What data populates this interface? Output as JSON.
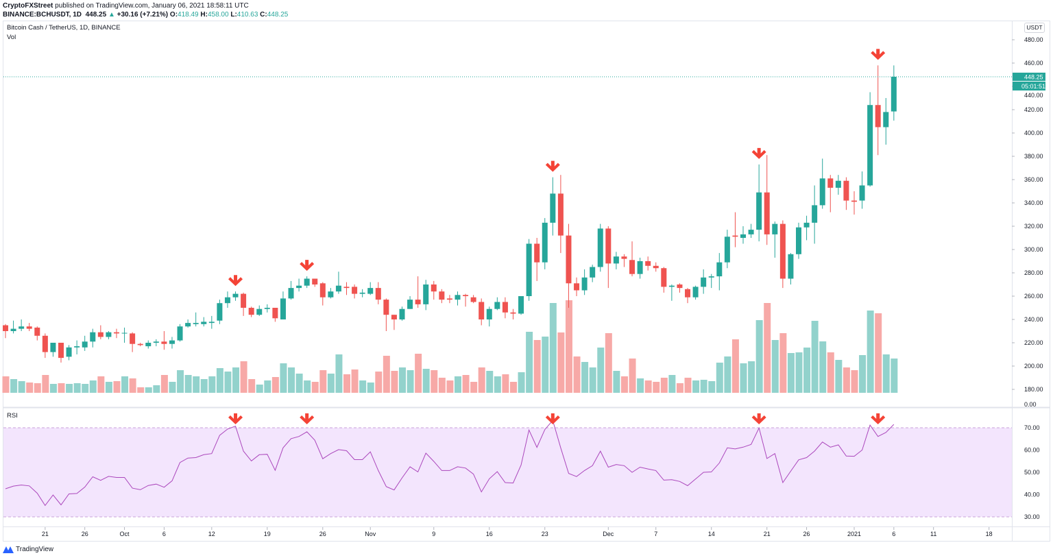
{
  "header": {
    "publisher": "CryptoFXStreet",
    "published_text": "published on TradingView.com, January 06, 2021 18:58:11 UTC",
    "symbol": "BINANCE:BCHUSDT, 1D",
    "last": "448.25",
    "change": "+30.16 (+7.21%)",
    "o_label": "O:",
    "o": "418.49",
    "h_label": "H:",
    "h": "458.00",
    "l_label": "L:",
    "l": "410.63",
    "c_label": "C:",
    "c": "448.25"
  },
  "legend": {
    "title": "Bitcoin Cash / TetherUS, 1D, BINANCE",
    "vol": "Vol",
    "rsi": "RSI"
  },
  "price_axis": {
    "unit": "USDT",
    "last_price": "448.25",
    "countdown": "05:01:51",
    "volume_zero": "0.00"
  },
  "footer": {
    "brand": "TradingView"
  },
  "colors": {
    "up": "#26a69a",
    "down": "#ef5350",
    "up_volume": "#92d2cc",
    "down_volume": "#f7a9a7",
    "rsi_line": "#ab47bc",
    "rsi_band": "#f3e5fd",
    "marker": "#f44336"
  },
  "chart_data": {
    "type": "candlestick",
    "title": "Bitcoin Cash / TetherUS, 1D, BINANCE",
    "ylim": [
      180,
      480
    ],
    "yticks": [
      "480.00",
      "460.00",
      "440.00",
      "420.00",
      "400.00",
      "380.00",
      "360.00",
      "340.00",
      "320.00",
      "300.00",
      "280.00",
      "260.00",
      "240.00",
      "220.00",
      "200.00",
      "180.00"
    ],
    "rsi_ticks": [
      "70.00",
      "60.00",
      "50.00",
      "40.00",
      "30.00"
    ],
    "rsi_band": [
      30,
      70
    ],
    "xticks": [
      {
        "label": "21",
        "date": "2020-09-21"
      },
      {
        "label": "26",
        "date": "2020-09-26"
      },
      {
        "label": "Oct",
        "date": "2020-10-01"
      },
      {
        "label": "6",
        "date": "2020-10-06"
      },
      {
        "label": "12",
        "date": "2020-10-12"
      },
      {
        "label": "19",
        "date": "2020-10-19"
      },
      {
        "label": "26",
        "date": "2020-10-26"
      },
      {
        "label": "Nov",
        "date": "2020-11-01"
      },
      {
        "label": "9",
        "date": "2020-11-09"
      },
      {
        "label": "16",
        "date": "2020-11-16"
      },
      {
        "label": "23",
        "date": "2020-11-23"
      },
      {
        "label": "Dec",
        "date": "2020-12-01"
      },
      {
        "label": "7",
        "date": "2020-12-07"
      },
      {
        "label": "14",
        "date": "2020-12-14"
      },
      {
        "label": "21",
        "date": "2020-12-21"
      },
      {
        "label": "26",
        "date": "2020-12-26"
      },
      {
        "label": "2021",
        "date": "2021-01-01"
      },
      {
        "label": "6",
        "date": "2021-01-06"
      },
      {
        "label": "11",
        "date": "2021-01-11"
      },
      {
        "label": "18",
        "date": "2021-01-18"
      }
    ],
    "markers": [
      "2020-10-15",
      "2020-10-24",
      "2020-11-24",
      "2020-12-20",
      "2021-01-04"
    ],
    "columns": [
      "date",
      "open",
      "high",
      "low",
      "close",
      "volume",
      "rsi"
    ],
    "rows": [
      [
        "2020-09-16",
        235,
        236,
        224,
        230,
        24,
        42.6
      ],
      [
        "2020-09-17",
        230,
        239,
        228,
        232,
        20,
        43.8
      ],
      [
        "2020-09-18",
        232,
        240,
        230,
        234,
        17,
        44.3
      ],
      [
        "2020-09-19",
        234,
        237,
        230,
        232,
        15,
        43.9
      ],
      [
        "2020-09-20",
        233,
        234,
        222,
        226,
        14,
        40.6
      ],
      [
        "2020-09-21",
        226,
        228,
        207,
        212,
        26,
        35.1
      ],
      [
        "2020-09-22",
        212,
        220,
        208,
        220,
        13,
        39.8
      ],
      [
        "2020-09-23",
        220,
        220,
        203,
        207,
        14,
        35.4
      ],
      [
        "2020-09-24",
        208,
        218,
        205,
        216,
        13,
        40.3
      ],
      [
        "2020-09-25",
        216,
        222,
        210,
        217,
        14,
        40.5
      ],
      [
        "2020-09-26",
        216,
        226,
        213,
        221,
        13,
        43.4
      ],
      [
        "2020-09-27",
        221,
        232,
        216,
        229,
        18,
        48.0
      ],
      [
        "2020-09-28",
        229,
        235,
        223,
        225,
        24,
        46.4
      ],
      [
        "2020-09-29",
        225,
        230,
        223,
        229,
        16,
        48.2
      ],
      [
        "2020-09-30",
        229,
        232,
        224,
        228,
        17,
        47.7
      ],
      [
        "2020-10-01",
        228,
        233,
        220,
        228.5,
        24,
        47.7
      ],
      [
        "2020-10-02",
        228,
        229,
        212,
        219,
        21,
        42.9
      ],
      [
        "2020-10-03",
        219,
        220,
        217,
        218,
        8,
        42.2
      ],
      [
        "2020-10-04",
        217,
        222,
        215,
        220,
        8,
        44.1
      ],
      [
        "2020-10-05",
        220,
        223,
        217,
        221,
        11,
        44.7
      ],
      [
        "2020-10-06",
        221,
        230,
        214,
        219,
        26,
        43.3
      ],
      [
        "2020-10-07",
        219,
        225,
        215,
        222,
        16,
        46.2
      ],
      [
        "2020-10-08",
        222,
        236,
        221,
        234,
        33,
        54.4
      ],
      [
        "2020-10-09",
        234,
        240,
        233,
        237,
        26,
        56.4
      ],
      [
        "2020-10-10",
        236,
        246,
        234,
        237,
        24,
        56.6
      ],
      [
        "2020-10-11",
        236,
        242,
        234,
        238,
        20,
        57.9
      ],
      [
        "2020-10-12",
        237,
        243,
        232,
        238,
        24,
        58.4
      ],
      [
        "2020-10-13",
        239,
        257,
        236,
        254,
        36,
        66.6
      ],
      [
        "2020-10-14",
        254,
        264,
        250,
        259,
        31,
        69.4
      ],
      [
        "2020-10-15",
        259,
        264,
        256,
        262,
        37,
        70.7
      ],
      [
        "2020-10-16",
        262,
        263,
        243,
        250,
        46,
        59.5
      ],
      [
        "2020-10-17",
        250,
        251,
        242,
        244,
        20,
        55.1
      ],
      [
        "2020-10-18",
        244,
        252,
        243,
        249,
        12,
        57.9
      ],
      [
        "2020-10-19",
        249,
        253,
        246,
        250,
        18,
        58.1
      ],
      [
        "2020-10-20",
        250,
        250,
        238,
        241,
        23,
        50.9
      ],
      [
        "2020-10-21",
        240,
        264,
        240,
        258,
        43,
        61.0
      ],
      [
        "2020-10-22",
        258,
        273,
        257,
        267,
        37,
        65.1
      ],
      [
        "2020-10-23",
        267,
        275,
        264,
        269,
        28,
        66.1
      ],
      [
        "2020-10-24",
        269,
        277,
        267,
        275,
        18,
        68.2
      ],
      [
        "2020-10-25",
        275,
        275,
        268,
        270,
        16,
        64.4
      ],
      [
        "2020-10-26",
        271,
        272,
        252,
        259,
        33,
        56.1
      ],
      [
        "2020-10-27",
        259,
        267,
        258,
        264,
        28,
        58.4
      ],
      [
        "2020-10-28",
        264,
        281,
        262,
        269,
        56,
        60.2
      ],
      [
        "2020-10-29",
        268,
        272,
        261,
        267,
        27,
        59.7
      ],
      [
        "2020-10-30",
        268,
        270,
        258,
        262,
        34,
        55.7
      ],
      [
        "2020-10-31",
        262,
        266,
        259,
        263,
        18,
        55.7
      ],
      [
        "2020-11-01",
        262,
        272,
        261,
        267,
        15,
        59.2
      ],
      [
        "2020-11-02",
        267,
        272,
        253,
        257,
        31,
        50.8
      ],
      [
        "2020-11-03",
        257,
        258,
        230,
        244,
        54,
        43.6
      ],
      [
        "2020-11-04",
        244,
        244,
        231,
        240,
        32,
        42.1
      ],
      [
        "2020-11-05",
        240,
        251,
        239,
        249,
        37,
        47.5
      ],
      [
        "2020-11-06",
        249,
        260,
        249,
        257,
        33,
        52.5
      ],
      [
        "2020-11-07",
        257,
        277,
        250,
        253,
        57,
        50.2
      ],
      [
        "2020-11-08",
        253,
        274,
        248,
        270,
        35,
        58.6
      ],
      [
        "2020-11-09",
        270,
        273,
        257,
        264,
        33,
        54.9
      ],
      [
        "2020-11-10",
        264,
        266,
        254,
        257,
        22,
        50.8
      ],
      [
        "2020-11-11",
        258,
        261,
        254,
        257,
        18,
        50.8
      ],
      [
        "2020-11-12",
        257,
        264,
        252,
        261,
        24,
        52.5
      ],
      [
        "2020-11-13",
        261,
        262,
        251,
        260,
        26,
        51.9
      ],
      [
        "2020-11-14",
        259,
        261,
        254,
        255,
        16,
        49.2
      ],
      [
        "2020-11-15",
        255,
        258,
        235,
        240,
        37,
        41.2
      ],
      [
        "2020-11-16",
        240,
        251,
        234,
        249,
        32,
        47.1
      ],
      [
        "2020-11-17",
        249,
        259,
        248,
        255,
        24,
        50.3
      ],
      [
        "2020-11-18",
        255,
        259,
        241,
        246,
        27,
        45.4
      ],
      [
        "2020-11-19",
        246,
        249,
        240,
        245,
        16,
        45.2
      ],
      [
        "2020-11-20",
        245,
        260,
        244,
        260,
        30,
        53.3
      ],
      [
        "2020-11-21",
        260,
        309,
        256,
        305,
        89,
        69.0
      ],
      [
        "2020-11-22",
        305,
        310,
        273,
        289,
        77,
        61.2
      ],
      [
        "2020-11-23",
        289,
        327,
        283,
        323,
        82,
        69.2
      ],
      [
        "2020-11-24",
        323,
        362,
        312,
        348,
        131,
        73.3
      ],
      [
        "2020-11-25",
        348,
        364,
        297,
        312,
        88,
        61.0
      ],
      [
        "2020-11-26",
        312,
        322,
        250,
        271,
        135,
        49.5
      ],
      [
        "2020-11-27",
        271,
        276,
        260,
        265,
        53,
        48.1
      ],
      [
        "2020-11-28",
        265,
        283,
        261,
        276,
        45,
        50.8
      ],
      [
        "2020-11-29",
        276,
        287,
        272,
        285,
        37,
        53.0
      ],
      [
        "2020-11-30",
        285,
        322,
        281,
        318,
        66,
        59.5
      ],
      [
        "2020-12-01",
        318,
        320,
        267,
        288,
        87,
        52.3
      ],
      [
        "2020-12-02",
        288,
        298,
        283,
        294,
        32,
        53.5
      ],
      [
        "2020-12-03",
        294,
        296,
        285,
        292,
        24,
        53.0
      ],
      [
        "2020-12-04",
        291,
        307,
        277,
        279,
        50,
        50.0
      ],
      [
        "2020-12-05",
        279,
        293,
        275,
        290,
        21,
        52.3
      ],
      [
        "2020-12-06",
        290,
        294,
        282,
        286,
        18,
        51.5
      ],
      [
        "2020-12-07",
        286,
        289,
        281,
        284,
        16,
        50.8
      ],
      [
        "2020-12-08",
        284,
        285,
        263,
        268,
        22,
        46.5
      ],
      [
        "2020-12-09",
        268,
        270,
        256,
        269,
        26,
        46.7
      ],
      [
        "2020-12-10",
        270,
        271,
        263,
        267,
        14,
        45.9
      ],
      [
        "2020-12-11",
        266,
        267,
        254,
        259,
        22,
        44.0
      ],
      [
        "2020-12-12",
        259,
        269,
        257,
        268,
        18,
        47.0
      ],
      [
        "2020-12-13",
        268,
        283,
        262,
        276,
        19,
        50.0
      ],
      [
        "2020-12-14",
        276,
        279,
        267,
        277,
        17,
        50.2
      ],
      [
        "2020-12-15",
        277,
        297,
        265,
        289,
        44,
        54.2
      ],
      [
        "2020-12-16",
        289,
        317,
        284,
        311,
        53,
        61.0
      ],
      [
        "2020-12-17",
        312,
        332,
        302,
        311,
        78,
        60.5
      ],
      [
        "2020-12-18",
        310,
        320,
        305,
        313,
        43,
        61.3
      ],
      [
        "2020-12-19",
        313,
        322,
        310,
        317,
        46,
        62.5
      ],
      [
        "2020-12-20",
        317,
        373,
        307,
        349,
        106,
        69.9
      ],
      [
        "2020-12-21",
        349,
        381,
        304,
        313,
        131,
        56.2
      ],
      [
        "2020-12-22",
        313,
        324,
        293,
        322,
        77,
        58.4
      ],
      [
        "2020-12-23",
        322,
        325,
        267,
        275,
        87,
        45.4
      ],
      [
        "2020-12-24",
        275,
        297,
        270,
        296,
        58,
        50.5
      ],
      [
        "2020-12-25",
        296,
        323,
        292,
        319,
        59,
        55.6
      ],
      [
        "2020-12-26",
        319,
        329,
        308,
        323,
        66,
        56.6
      ],
      [
        "2020-12-27",
        323,
        355,
        305,
        338,
        105,
        59.5
      ],
      [
        "2020-12-28",
        338,
        378,
        335,
        361,
        75,
        63.6
      ],
      [
        "2020-12-29",
        361,
        364,
        332,
        353,
        59,
        61.3
      ],
      [
        "2020-12-30",
        353,
        364,
        347,
        359,
        48,
        62.3
      ],
      [
        "2020-12-31",
        359,
        362,
        334,
        342,
        37,
        57.3
      ],
      [
        "2021-01-01",
        342,
        350,
        330,
        341,
        33,
        57.2
      ],
      [
        "2021-01-02",
        342,
        367,
        335,
        355,
        55,
        60.0
      ],
      [
        "2021-01-03",
        355,
        435,
        354,
        424,
        120,
        71.2
      ],
      [
        "2021-01-04",
        424,
        458,
        381,
        405,
        116,
        66.1
      ],
      [
        "2021-01-05",
        405,
        430,
        390,
        418,
        56,
        67.9
      ],
      [
        "2021-01-06",
        418.49,
        458,
        410.63,
        448.25,
        50,
        71.5
      ]
    ]
  }
}
